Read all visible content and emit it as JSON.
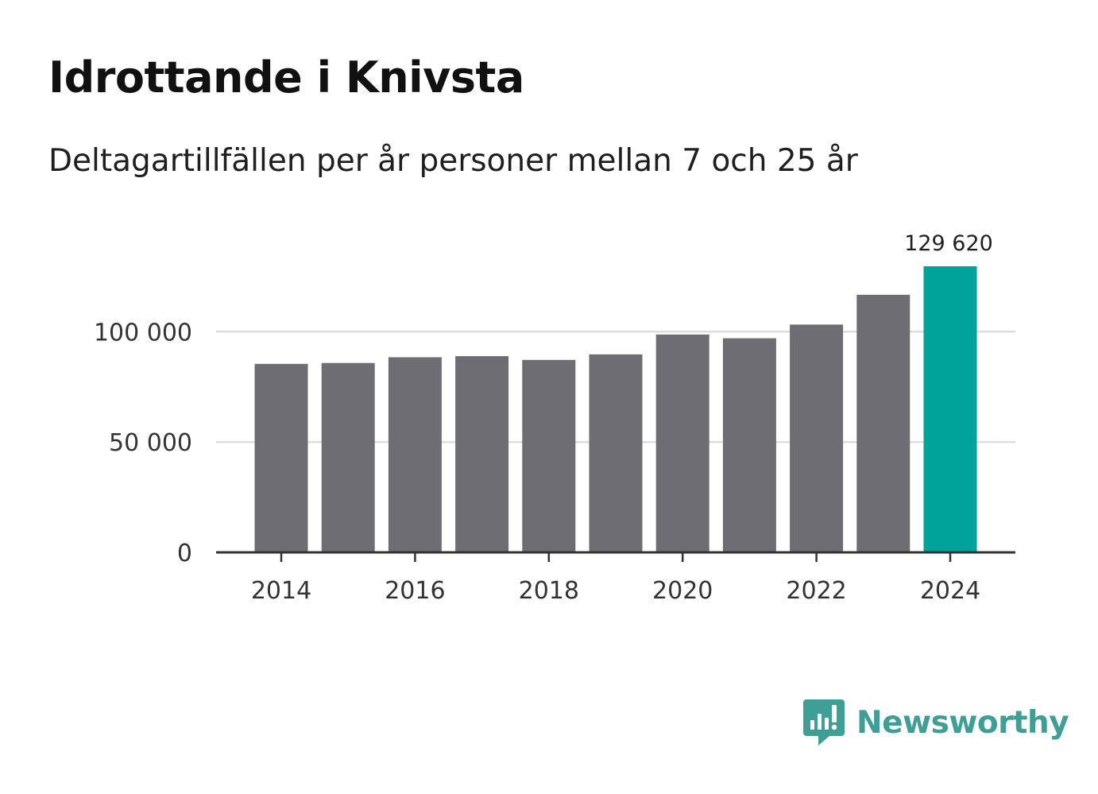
{
  "title": "Idrottande i Knivsta",
  "subtitle": "Deltagartillfällen per år personer mellan 7 och 25 år",
  "brand": {
    "name": "Newsworthy",
    "color": "#3f9e96",
    "icon": "newsworthy-logo-icon"
  },
  "colors": {
    "bar": "#6e6d73",
    "highlight": "#00a39a",
    "grid": "#dddddd",
    "axis": "#333333"
  },
  "chart_data": {
    "type": "bar",
    "title": "Idrottande i Knivsta",
    "subtitle": "Deltagartillfällen per år personer mellan 7 och 25 år",
    "xlabel": "",
    "ylabel": "",
    "categories": [
      2014,
      2015,
      2016,
      2017,
      2018,
      2019,
      2020,
      2021,
      2022,
      2023,
      2024
    ],
    "values": [
      85400,
      85800,
      88400,
      88900,
      87200,
      89700,
      98700,
      97000,
      103200,
      116700,
      129620
    ],
    "ylim": [
      0,
      129620
    ],
    "yticks": [
      {
        "value": 0,
        "label": "0"
      },
      {
        "value": 50000,
        "label": "50 000"
      },
      {
        "value": 100000,
        "label": "100 000"
      }
    ],
    "xticks": [
      {
        "value": 2014,
        "label": "2014"
      },
      {
        "value": 2016,
        "label": "2016"
      },
      {
        "value": 2018,
        "label": "2018"
      },
      {
        "value": 2020,
        "label": "2020"
      },
      {
        "value": 2022,
        "label": "2022"
      },
      {
        "value": 2024,
        "label": "2024"
      }
    ],
    "highlight": {
      "category": 2024,
      "label": "129 620"
    },
    "grid": true,
    "legend": "none"
  }
}
